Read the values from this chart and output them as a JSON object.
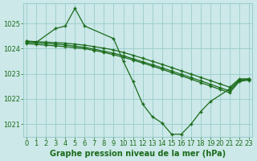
{
  "background_color": "#cce8e8",
  "grid_color": "#99cccc",
  "line_color": "#1a6b1a",
  "line1_x": [
    0,
    1,
    3,
    4,
    5,
    6,
    9,
    10,
    11,
    12,
    13,
    14,
    15,
    16,
    17,
    18,
    19,
    21,
    22,
    23
  ],
  "line1_y": [
    1024.3,
    1024.25,
    1024.8,
    1024.9,
    1025.6,
    1024.9,
    1024.4,
    1023.5,
    1022.7,
    1021.8,
    1021.3,
    1021.05,
    1020.6,
    1020.6,
    1021.0,
    1021.5,
    1021.9,
    1022.4,
    1022.75,
    1022.8
  ],
  "line2_x": [
    0,
    1,
    2,
    3,
    4,
    5,
    6,
    7,
    8,
    9,
    10,
    11,
    12,
    13,
    14,
    15,
    16,
    17,
    18,
    19,
    20,
    21,
    22,
    23
  ],
  "line2_y": [
    1024.3,
    1024.28,
    1024.26,
    1024.24,
    1024.22,
    1024.18,
    1024.14,
    1024.08,
    1024.02,
    1023.95,
    1023.85,
    1023.74,
    1023.62,
    1023.5,
    1023.38,
    1023.25,
    1023.12,
    1022.99,
    1022.86,
    1022.73,
    1022.6,
    1022.47,
    1022.8,
    1022.8
  ],
  "line3_x": [
    0,
    1,
    2,
    3,
    4,
    5,
    6,
    7,
    8,
    9,
    10,
    11,
    12,
    13,
    14,
    15,
    16,
    17,
    18,
    19,
    20,
    21,
    22,
    23
  ],
  "line3_y": [
    1024.25,
    1024.23,
    1024.21,
    1024.18,
    1024.15,
    1024.1,
    1024.05,
    1023.98,
    1023.9,
    1023.82,
    1023.72,
    1023.6,
    1023.48,
    1023.36,
    1023.24,
    1023.11,
    1022.98,
    1022.85,
    1022.72,
    1022.59,
    1022.45,
    1022.32,
    1022.75,
    1022.78
  ],
  "line4_x": [
    0,
    1,
    2,
    3,
    4,
    5,
    6,
    7,
    8,
    9,
    10,
    11,
    12,
    13,
    14,
    15,
    16,
    17,
    18,
    19,
    20,
    21,
    22,
    23
  ],
  "line4_y": [
    1024.2,
    1024.17,
    1024.14,
    1024.11,
    1024.08,
    1024.04,
    1024.0,
    1023.93,
    1023.85,
    1023.76,
    1023.66,
    1023.55,
    1023.43,
    1023.31,
    1023.18,
    1023.05,
    1022.92,
    1022.79,
    1022.65,
    1022.52,
    1022.38,
    1022.25,
    1022.7,
    1022.75
  ],
  "xlabel": "Graphe pression niveau de la mer (hPa)",
  "ylim": [
    1020.5,
    1025.8
  ],
  "xlim": [
    -0.3,
    23.3
  ],
  "yticks": [
    1021,
    1022,
    1023,
    1024,
    1025
  ],
  "xticks": [
    0,
    1,
    2,
    3,
    4,
    5,
    6,
    7,
    8,
    9,
    10,
    11,
    12,
    13,
    14,
    15,
    16,
    17,
    18,
    19,
    20,
    21,
    22,
    23
  ],
  "xlabel_fontsize": 7.0,
  "tick_fontsize": 6.0
}
